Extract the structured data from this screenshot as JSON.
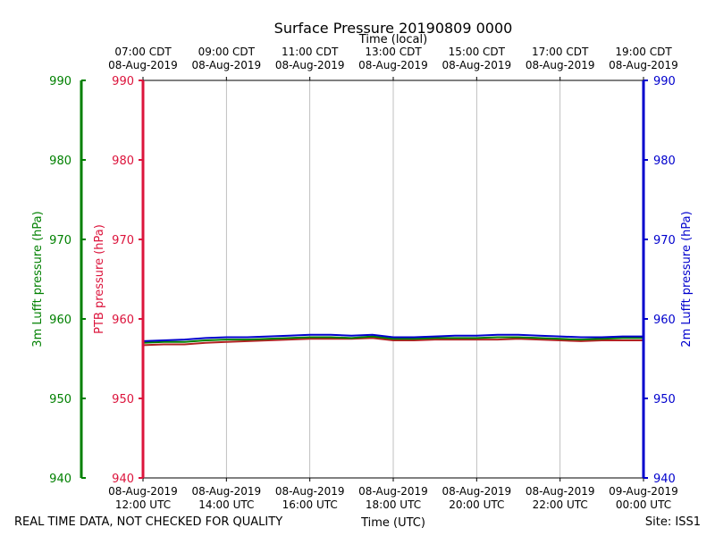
{
  "chart_data": {
    "type": "line",
    "title": "Surface Pressure 20190809 0000",
    "top_axis_label": "Time (local)",
    "bottom_axis_label": "Time (UTC)",
    "footer_left": "REAL TIME DATA, NOT CHECKED FOR QUALITY",
    "footer_right": "Site: ISS1",
    "xlim_hours_utc": [
      12,
      24
    ],
    "grid": true,
    "x_ticks": [
      {
        "hour": 12,
        "top": [
          "07:00 CDT",
          "08-Aug-2019"
        ],
        "bottom": [
          "08-Aug-2019",
          "12:00 UTC"
        ]
      },
      {
        "hour": 14,
        "top": [
          "09:00 CDT",
          "08-Aug-2019"
        ],
        "bottom": [
          "08-Aug-2019",
          "14:00 UTC"
        ]
      },
      {
        "hour": 16,
        "top": [
          "11:00 CDT",
          "08-Aug-2019"
        ],
        "bottom": [
          "08-Aug-2019",
          "16:00 UTC"
        ]
      },
      {
        "hour": 18,
        "top": [
          "13:00 CDT",
          "08-Aug-2019"
        ],
        "bottom": [
          "08-Aug-2019",
          "18:00 UTC"
        ]
      },
      {
        "hour": 20,
        "top": [
          "15:00 CDT",
          "08-Aug-2019"
        ],
        "bottom": [
          "08-Aug-2019",
          "20:00 UTC"
        ]
      },
      {
        "hour": 22,
        "top": [
          "17:00 CDT",
          "08-Aug-2019"
        ],
        "bottom": [
          "08-Aug-2019",
          "22:00 UTC"
        ]
      },
      {
        "hour": 24,
        "top": [
          "19:00 CDT",
          "08-Aug-2019"
        ],
        "bottom": [
          "09-Aug-2019",
          "00:00 UTC"
        ]
      }
    ],
    "y_axes": [
      {
        "id": "lufft3m",
        "label": "3m Lufft pressure (hPa)",
        "color": "#008000",
        "ylim": [
          940,
          990
        ],
        "ticks": [
          940,
          950,
          960,
          970,
          980,
          990
        ]
      },
      {
        "id": "ptb",
        "label": "PTB pressure (hPa)",
        "color": "#dc143c",
        "ylim": [
          940,
          990
        ],
        "ticks": [
          940,
          950,
          960,
          970,
          980,
          990
        ]
      },
      {
        "id": "lufft2m",
        "label": "2m Lufft pressure (hPa)",
        "color": "#0000cd",
        "ylim": [
          940,
          990
        ],
        "ticks": [
          940,
          950,
          960,
          970,
          980,
          990
        ]
      }
    ],
    "x": [
      12.0,
      12.5,
      13.0,
      13.5,
      14.0,
      14.5,
      15.0,
      15.5,
      16.0,
      16.5,
      17.0,
      17.5,
      18.0,
      18.5,
      19.0,
      19.5,
      20.0,
      20.5,
      21.0,
      21.5,
      22.0,
      22.5,
      23.0,
      23.5,
      24.0
    ],
    "series": [
      {
        "axis": "ptb",
        "color": "#b22222",
        "values": [
          956.7,
          956.8,
          956.8,
          957.0,
          957.1,
          957.2,
          957.3,
          957.4,
          957.5,
          957.5,
          957.5,
          957.6,
          957.3,
          957.3,
          957.4,
          957.4,
          957.4,
          957.4,
          957.5,
          957.4,
          957.3,
          957.2,
          957.3,
          957.3,
          957.3
        ]
      },
      {
        "axis": "lufft3m",
        "color": "#008000",
        "values": [
          957.0,
          957.1,
          957.1,
          957.3,
          957.4,
          957.4,
          957.5,
          957.6,
          957.7,
          957.7,
          957.6,
          957.8,
          957.5,
          957.5,
          957.6,
          957.6,
          957.6,
          957.7,
          957.7,
          957.6,
          957.5,
          957.4,
          957.5,
          957.6,
          957.6
        ]
      },
      {
        "axis": "lufft2m",
        "color": "#0000cd",
        "values": [
          957.2,
          957.3,
          957.4,
          957.6,
          957.7,
          957.7,
          957.8,
          957.9,
          958.0,
          958.0,
          957.9,
          958.0,
          957.7,
          957.7,
          957.8,
          957.9,
          957.9,
          958.0,
          958.0,
          957.9,
          957.8,
          957.7,
          957.7,
          957.8,
          957.8
        ]
      }
    ]
  }
}
